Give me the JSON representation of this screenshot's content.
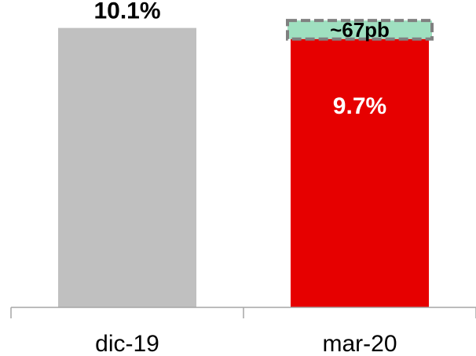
{
  "chart_data": {
    "type": "bar",
    "categories": [
      "dic-19",
      "mar-20"
    ],
    "values": [
      10.1,
      9.7
    ],
    "data_labels": [
      "10.1%",
      "9.7%"
    ],
    "colors": [
      "#c0c0c0",
      "#e60000"
    ],
    "annotation": {
      "text": "~67pb",
      "category": "mar-20",
      "value": 0.67,
      "fill": "#9fe0c0",
      "border": "#808080"
    },
    "title": "",
    "xlabel": "",
    "ylabel": "",
    "ylim": [
      0,
      10.77
    ],
    "grid": false,
    "legend": "none"
  }
}
